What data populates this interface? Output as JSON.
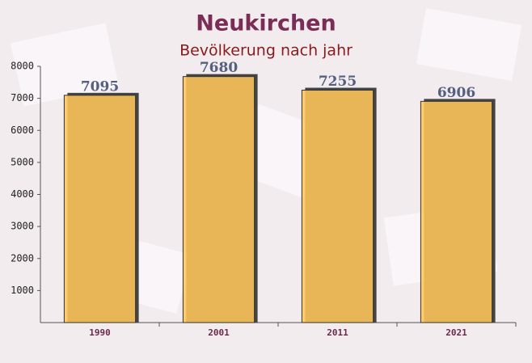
{
  "chart_data": {
    "type": "bar",
    "title": "Neukirchen",
    "subtitle": "Bevölkerung nach jahr",
    "categories": [
      "1990",
      "2001",
      "2011",
      "2021"
    ],
    "values": [
      7095,
      7680,
      7255,
      6906
    ],
    "color": "#ffc65a",
    "ylim": [
      0,
      8000
    ],
    "yticks": [
      1000,
      2000,
      3000,
      4000,
      5000,
      6000,
      7000,
      8000
    ],
    "grid": false
  }
}
